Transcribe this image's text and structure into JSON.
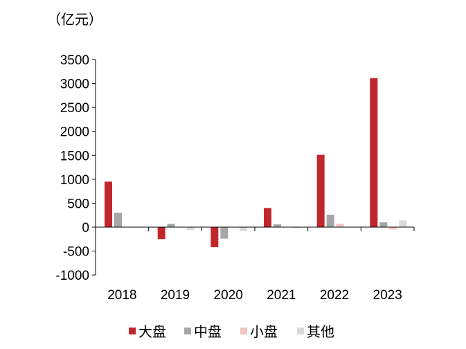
{
  "chart_data": {
    "type": "bar",
    "unit_label": "（亿元）",
    "categories": [
      "2018",
      "2019",
      "2020",
      "2021",
      "2022",
      "2023"
    ],
    "series": [
      {
        "name": "大盘",
        "color": "#C0272D",
        "values": [
          950,
          -250,
          -420,
          400,
          1510,
          3110
        ]
      },
      {
        "name": "中盘",
        "color": "#A6A6A6",
        "values": [
          300,
          70,
          -240,
          60,
          260,
          100
        ]
      },
      {
        "name": "小盘",
        "color": "#F2C4BF",
        "values": [
          0,
          0,
          0,
          0,
          70,
          -50
        ]
      },
      {
        "name": "其他",
        "color": "#D9D9D9",
        "values": [
          0,
          -60,
          -80,
          -20,
          0,
          140
        ]
      }
    ],
    "yticks": [
      3500,
      3000,
      2500,
      2000,
      1500,
      1000,
      500,
      0,
      -500,
      -1000
    ],
    "ylim": [
      -1000,
      3500
    ],
    "grid": false,
    "legend_position": "bottom"
  }
}
